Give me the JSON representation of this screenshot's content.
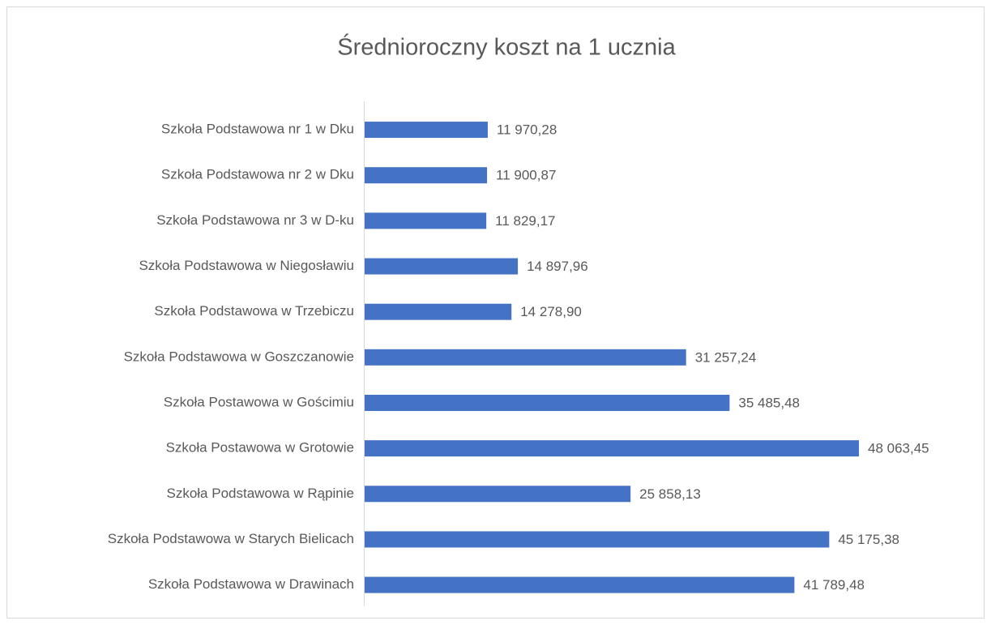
{
  "chart_data": {
    "type": "bar",
    "orientation": "horizontal",
    "title": "Średnioroczny koszt na 1 ucznia",
    "categories": [
      "Szkoła Podstawowa nr 1 w Dku",
      "Szkoła Podstawowa nr 2 w Dku",
      "Szkoła Podstawowa nr 3 w D-ku",
      "Szkoła Podstawowa w Niegosławiu",
      "Szkoła Podstawowa w Trzebiczu",
      "Szkoła Podstawowa w Goszczanowie",
      "Szkoła Postawowa w Gościmiu",
      "Szkoła Postawowa w Grotowie",
      "Szkoła Podstawowa w Rąpinie",
      "Szkoła Podstawowa w Starych Bielicach",
      "Szkoła Podstawowa w Drawinach"
    ],
    "values": [
      11970.28,
      11900.87,
      11829.17,
      14897.96,
      14278.9,
      31257.24,
      35485.48,
      48063.45,
      25858.13,
      45175.38,
      41789.48
    ],
    "value_labels": [
      "11 970,28",
      "11 900,87",
      "11 829,17",
      "14 897,96",
      "14 278,90",
      "31 257,24",
      "35 485,48",
      "48 063,45",
      "25 858,13",
      "45 175,38",
      "41 789,48"
    ],
    "color": "#4472c4"
  }
}
